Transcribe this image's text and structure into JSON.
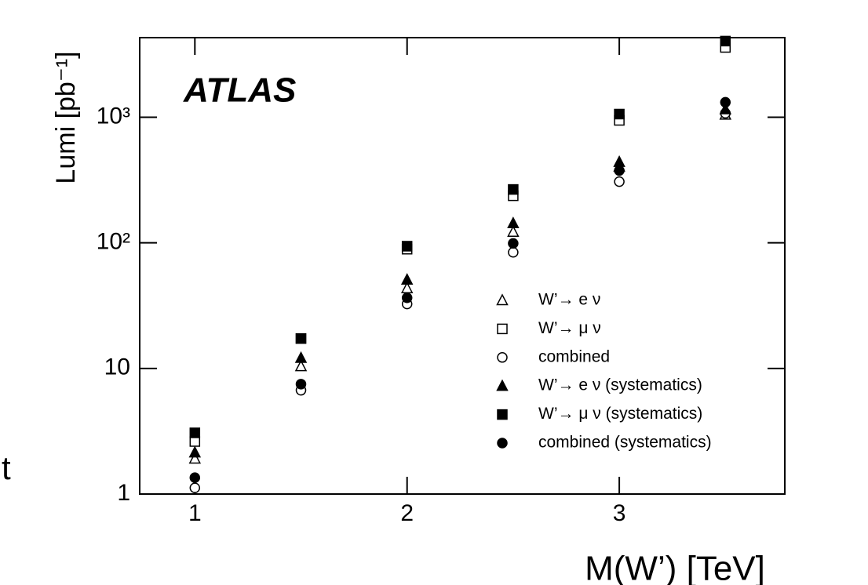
{
  "chart_data": {
    "type": "scatter",
    "annotation": "ATLAS",
    "y_label": "Lumi [pb⁻¹]",
    "x_label": "M(W’) [TeV]",
    "side_text": "t",
    "log_y": true,
    "x": [
      1,
      1.5,
      2,
      2.5,
      3,
      3.5
    ],
    "xlim": [
      0.74,
      3.78
    ],
    "xticks": [
      1,
      2,
      3
    ],
    "ylim": [
      1,
      4300
    ],
    "yticks": [
      1,
      10,
      {
        "value": 100,
        "label": "10²"
      },
      {
        "value": 1000,
        "label": "10³"
      }
    ],
    "series": [
      {
        "name": "W’→ e ν",
        "color": "#000000",
        "marker": "triangle",
        "filled": false,
        "values": [
          1.91,
          10.4,
          43.4,
          122,
          404,
          1045
        ]
      },
      {
        "name": "W’→ μ ν",
        "color": "#000000",
        "marker": "square",
        "filled": false,
        "values": [
          2.62,
          17.3,
          89,
          237,
          944,
          3594
        ]
      },
      {
        "name": "combined",
        "color": "#000000",
        "marker": "circle",
        "filled": false,
        "values": [
          1.12,
          6.7,
          32.6,
          84,
          307,
          1075
        ]
      },
      {
        "name": "W’→ e ν (systematics)",
        "color": "#000000",
        "marker": "triangle",
        "filled": true,
        "values": [
          2.14,
          12.1,
          50.8,
          143,
          440,
          1155
        ]
      },
      {
        "name": "W’→ μ ν (systematics)",
        "color": "#000000",
        "marker": "square",
        "filled": true,
        "values": [
          3.07,
          17.3,
          94,
          266,
          1059,
          4036
        ]
      },
      {
        "name": "combined (systematics)",
        "color": "#000000",
        "marker": "circle",
        "filled": true,
        "values": [
          1.35,
          7.5,
          36.5,
          99,
          376,
          1315
        ]
      }
    ]
  }
}
